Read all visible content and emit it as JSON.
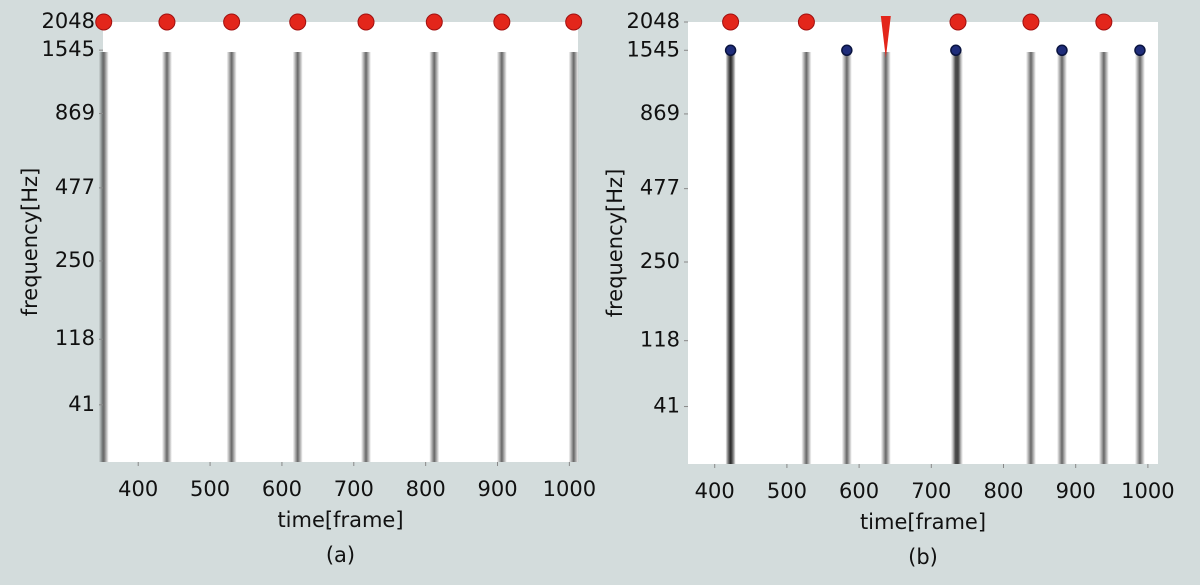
{
  "chart_data": [
    {
      "type": "spectrogram",
      "caption": "(a)",
      "xlabel": "time[frame]",
      "ylabel": "frequency[Hz]",
      "xlim": [
        351,
        1012
      ],
      "xticks": [
        400,
        500,
        600,
        700,
        800,
        900,
        1000
      ],
      "ylim": [
        0,
        2048
      ],
      "yticks": [
        2048,
        1545,
        869,
        477,
        250,
        118,
        41
      ],
      "markers": [
        {
          "shape": "circle",
          "color": "#e3261b",
          "y": 2048,
          "x": [
            352,
            440,
            530,
            622,
            717,
            812,
            906,
            1006
          ]
        }
      ]
    },
    {
      "type": "spectrogram",
      "caption": "(b)",
      "xlabel": "time[frame]",
      "ylabel": "frequency[Hz]",
      "xlim": [
        363,
        1014
      ],
      "xticks": [
        400,
        500,
        600,
        700,
        800,
        900,
        1000
      ],
      "ylim": [
        0,
        2048
      ],
      "yticks": [
        2048,
        1545,
        869,
        477,
        250,
        118,
        41
      ],
      "markers": [
        {
          "shape": "circle",
          "color": "#e3261b",
          "y": 2048,
          "x": [
            422,
            527,
            737,
            838,
            939
          ]
        },
        {
          "shape": "triangle",
          "color": "#e3261b",
          "y": 2048,
          "x": [
            637
          ]
        },
        {
          "shape": "dot",
          "color": "#1f2d7a",
          "y": 1545,
          "x": [
            422,
            583,
            734,
            881,
            989
          ]
        }
      ]
    }
  ]
}
